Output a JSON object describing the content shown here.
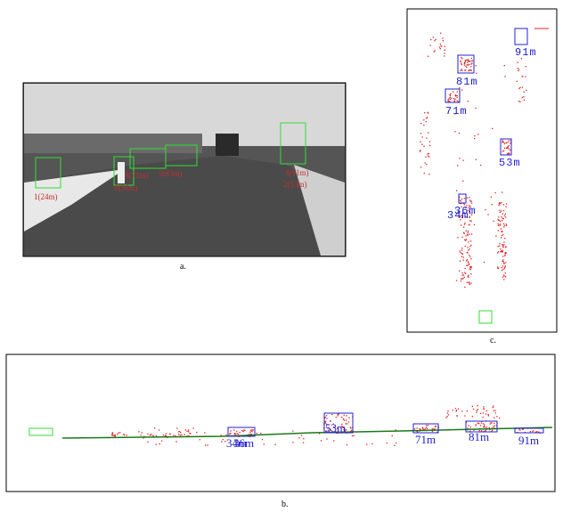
{
  "panels": {
    "a": {
      "caption": "a.",
      "detections": [
        "1(24m)",
        "0(36m)",
        "8(71m)",
        "5(83m)",
        "4(91m)",
        "2(53m)"
      ]
    },
    "b": {
      "caption": "b.",
      "detections": [
        "34m",
        "36m",
        "53m",
        "71m",
        "81m",
        "91m"
      ]
    },
    "c": {
      "caption": "c.",
      "detections": [
        "91m",
        "81m",
        "71m",
        "53m",
        "36m",
        "34m"
      ]
    }
  }
}
